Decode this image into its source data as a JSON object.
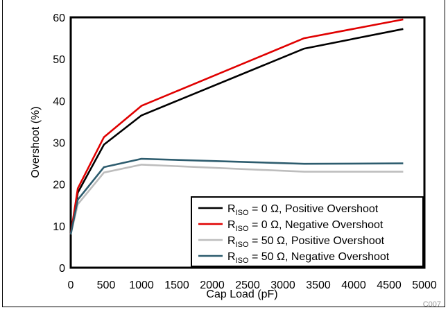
{
  "chart_data": {
    "type": "line",
    "title": "",
    "xlabel": "Cap Load (pF)",
    "ylabel": "Overshoot (%)",
    "xlim": [
      0,
      5000
    ],
    "ylim": [
      0,
      60
    ],
    "xticks": [
      "0",
      "500",
      "1000",
      "1500",
      "2000",
      "2500",
      "3000",
      "3500",
      "4000",
      "4500",
      "5000"
    ],
    "yticks": [
      "0",
      "10",
      "20",
      "30",
      "40",
      "50",
      "60"
    ],
    "grid": false,
    "legend_position": "bottom-right",
    "series": [
      {
        "legend": {
          "r": "R",
          "sub": "ISO",
          "rest": " = 0 Ω, Positive Overshoot"
        },
        "color": "#000000",
        "x": [
          0,
          100,
          470,
          1000,
          3300,
          4700
        ],
        "y": [
          8,
          18,
          29.5,
          36.5,
          52.5,
          57.2
        ]
      },
      {
        "legend": {
          "r": "R",
          "sub": "ISO",
          "rest": " = 0 Ω, Negative Overshoot"
        },
        "color": "#e00000",
        "x": [
          0,
          100,
          470,
          1000,
          3300,
          4700
        ],
        "y": [
          8,
          19,
          31.3,
          38.8,
          55.0,
          59.5
        ]
      },
      {
        "legend": {
          "r": "R",
          "sub": "ISO",
          "rest": " = 50 Ω, Positive Overshoot"
        },
        "color": "#bdbdbd",
        "x": [
          0,
          100,
          470,
          1000,
          3300,
          4700
        ],
        "y": [
          8,
          15.2,
          22.8,
          24.7,
          23.0,
          23.0
        ]
      },
      {
        "legend": {
          "r": "R",
          "sub": "ISO",
          "rest": " = 50 Ω, Negative Overshoot"
        },
        "color": "#2d5c6e",
        "x": [
          0,
          100,
          470,
          1000,
          3300,
          4700
        ],
        "y": [
          8,
          16.3,
          24.1,
          26.1,
          24.9,
          25.0
        ]
      }
    ]
  },
  "figure_code": "C007"
}
